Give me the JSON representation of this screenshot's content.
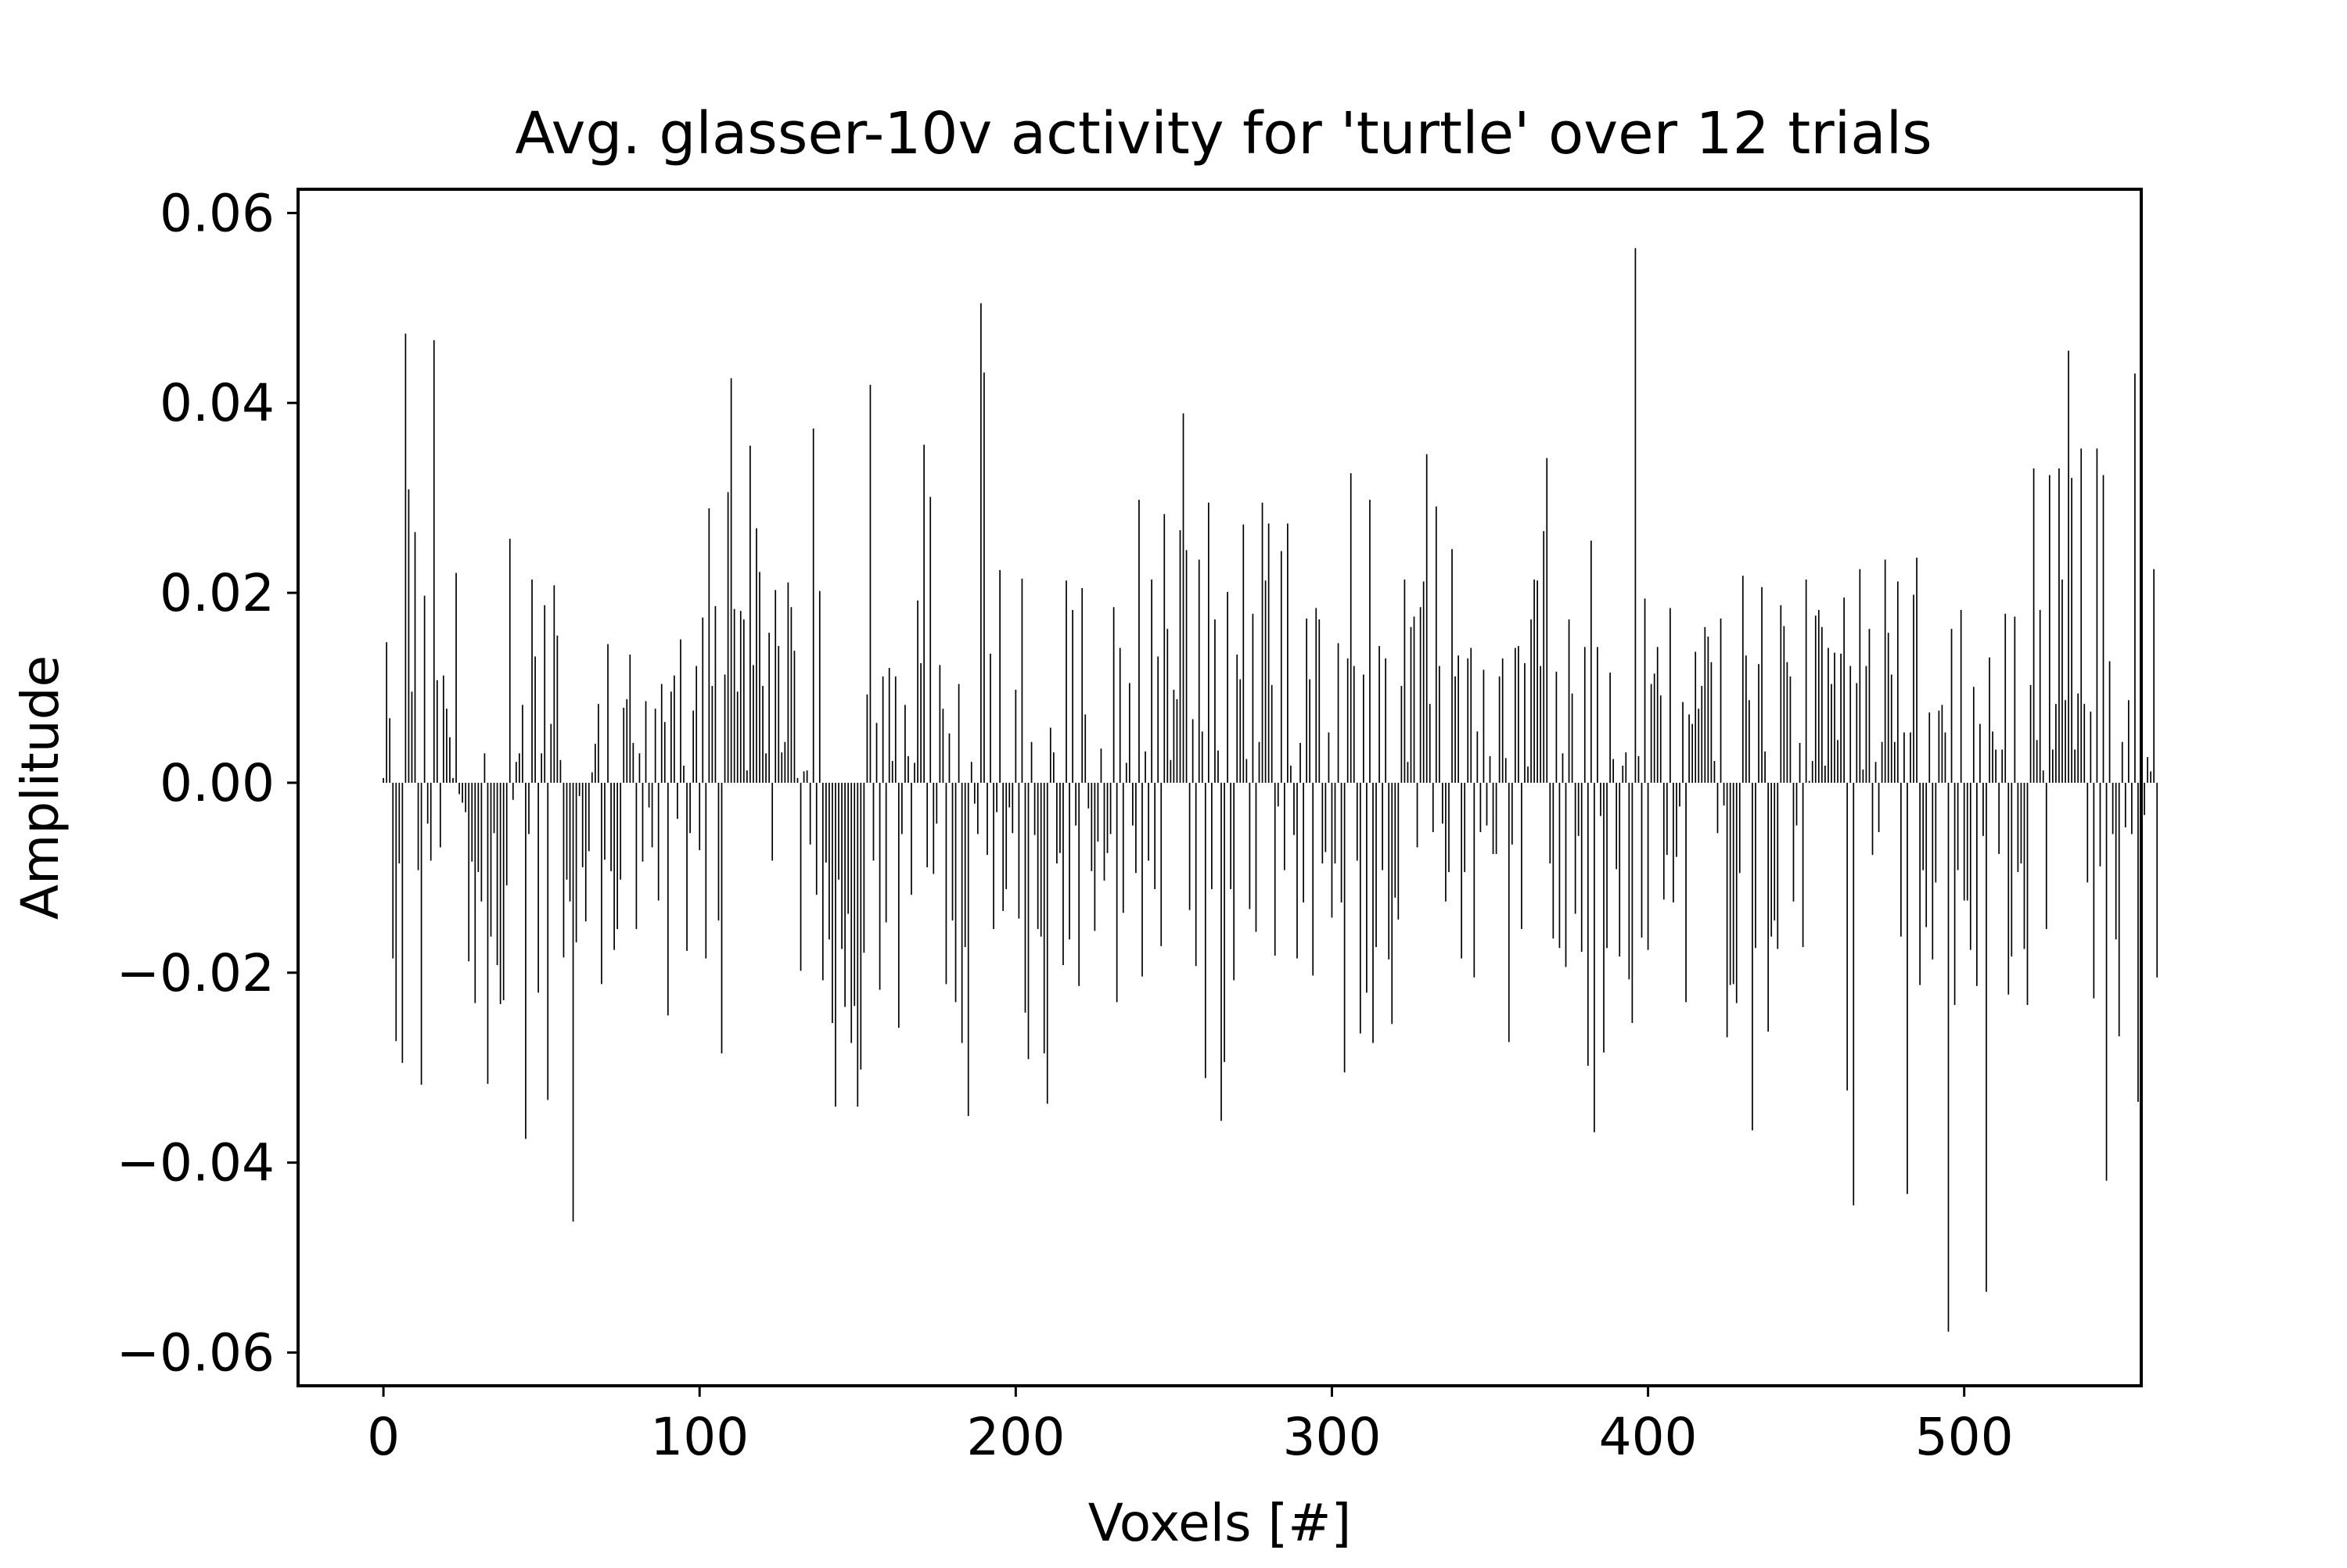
{
  "chart_data": {
    "type": "bar",
    "title": "Avg. glasser-10v activity for 'turtle' over 12 trials",
    "xlabel": "Voxels [#]",
    "ylabel": "Amplitude",
    "xlim": [
      -27,
      556
    ],
    "ylim": [
      -0.0635,
      0.0625
    ],
    "x_ticks": [
      0,
      100,
      200,
      300,
      400,
      500
    ],
    "x_tick_labels": [
      "0",
      "100",
      "200",
      "300",
      "400",
      "500"
    ],
    "y_ticks": [
      0.06,
      0.04,
      0.02,
      0.0,
      -0.02,
      -0.04,
      -0.06
    ],
    "y_tick_labels": [
      "0.06",
      "0.04",
      "0.02",
      "0.00",
      "−0.02",
      "−0.04",
      "−0.06"
    ],
    "grid": false,
    "bar_color": "#000000",
    "series": [
      {
        "values": [
          0.0005,
          0.0148,
          0.0068,
          -0.0185,
          -0.0272,
          -0.0085,
          -0.0295,
          0.0473,
          0.0309,
          0.0096,
          0.0264,
          -0.0092,
          -0.0318,
          0.0197,
          -0.0043,
          -0.0082,
          0.0466,
          0.0108,
          -0.0068,
          0.0113,
          0.0078,
          0.0048,
          0.0005,
          0.0221,
          -0.0012,
          -0.0021,
          -0.0031,
          -0.0188,
          -0.0083,
          -0.0232,
          -0.0094,
          -0.0125,
          0.0031,
          -0.0317,
          -0.0162,
          -0.0053,
          -0.0192,
          -0.0233,
          -0.0229,
          -0.0108,
          0.0257,
          -0.0018,
          0.0022,
          0.0031,
          0.0082,
          -0.0375,
          -0.0054,
          0.0214,
          0.0133,
          -0.0221,
          0.0031,
          0.0187,
          -0.0334,
          0.0062,
          0.0208,
          0.0155,
          0.0024,
          -0.0184,
          -0.0102,
          -0.0125,
          -0.0462,
          -0.0168,
          -0.0014,
          -0.0089,
          -0.0146,
          -0.0072,
          0.0011,
          0.0041,
          0.0083,
          -0.0212,
          -0.0081,
          0.0146,
          -0.0093,
          -0.0176,
          -0.0154,
          -0.0102,
          0.0079,
          0.0088,
          0.0135,
          0.0042,
          -0.0154,
          0.0031,
          -0.0083,
          0.0086,
          -0.0026,
          -0.0068,
          0.0078,
          -0.0124,
          0.0104,
          0.0064,
          -0.0245,
          0.0096,
          0.0113,
          -0.0038,
          0.0151,
          0.0018,
          -0.0177,
          -0.0053,
          0.0076,
          0.0123,
          -0.0071,
          0.0174,
          -0.0185,
          0.0289,
          0.0102,
          0.0186,
          -0.0145,
          -0.0285,
          0.0114,
          0.0306,
          0.0426,
          0.0183,
          0.0096,
          0.0181,
          0.0172,
          0.0013,
          0.0355,
          0.0124,
          0.0268,
          0.0222,
          0.0102,
          0.0031,
          0.0158,
          -0.0082,
          0.0203,
          0.0144,
          0.0032,
          0.0043,
          0.0211,
          0.0185,
          0.0139,
          0.0005,
          -0.0198,
          0.0012,
          0.0013,
          -0.0065,
          0.0373,
          -0.0118,
          0.0202,
          -0.0208,
          -0.0084,
          -0.0165,
          -0.0253,
          -0.0341,
          -0.0102,
          -0.0175,
          -0.0236,
          -0.0138,
          -0.0274,
          -0.0235,
          -0.0341,
          -0.0302,
          -0.0179,
          0.0093,
          0.0419,
          -0.0082,
          0.0063,
          -0.0218,
          0.0112,
          -0.0147,
          0.0121,
          0.0023,
          0.0112,
          -0.0258,
          -0.0054,
          0.0082,
          0.0028,
          -0.0118,
          0.0021,
          0.0192,
          0.0126,
          0.0356,
          -0.0089,
          0.0301,
          -0.0096,
          -0.0043,
          0.0124,
          0.0078,
          -0.0212,
          0.0052,
          -0.0145,
          -0.0231,
          0.0104,
          -0.0274,
          -0.0173,
          -0.0351,
          0.0022,
          -0.0022,
          -0.0054,
          0.0505,
          0.0432,
          -0.0076,
          0.0136,
          -0.0154,
          -0.0031,
          0.0224,
          -0.0135,
          -0.0112,
          -0.0026,
          -0.0053,
          0.0098,
          -0.0143,
          0.0215,
          -0.0242,
          -0.0291,
          0.0043,
          -0.0055,
          -0.0154,
          -0.0162,
          -0.0285,
          -0.0338,
          0.0058,
          0.0032,
          -0.0085,
          -0.0074,
          -0.0192,
          0.0213,
          -0.0165,
          0.0182,
          -0.0045,
          -0.0214,
          0.0205,
          0.0072,
          -0.0027,
          -0.0093,
          -0.0156,
          -0.0062,
          0.0036,
          -0.0103,
          -0.0074,
          -0.0054,
          0.0185,
          -0.0231,
          0.0142,
          -0.0137,
          0.0021,
          0.0105,
          -0.0045,
          -0.0095,
          0.0298,
          -0.0204,
          0.0033,
          -0.0082,
          0.0214,
          -0.0112,
          0.0133,
          -0.0172,
          0.0283,
          0.0162,
          0.0024,
          0.0098,
          0.0088,
          0.0266,
          0.0389,
          0.0245,
          -0.0134,
          0.0067,
          -0.0193,
          0.0235,
          0.0054,
          -0.0311,
          0.0295,
          -0.0112,
          0.0172,
          0.0034,
          -0.0356,
          -0.0294,
          0.0201,
          -0.0112,
          -0.0208,
          0.0135,
          0.0109,
          0.0272,
          0.0025,
          -0.0133,
          0.0178,
          -0.0157,
          0.0043,
          0.0295,
          0.0213,
          0.0273,
          0.0103,
          -0.0182,
          -0.0025,
          0.0244,
          -0.0092,
          0.0273,
          0.0018,
          -0.0055,
          -0.0185,
          0.0042,
          -0.0126,
          0.0173,
          0.0109,
          -0.0203,
          0.0184,
          0.0172,
          -0.0085,
          -0.0073,
          0.0053,
          -0.0142,
          -0.0085,
          0.0147,
          -0.0126,
          -0.0305,
          0.0131,
          0.0326,
          0.0123,
          -0.0082,
          -0.0264,
          0.0114,
          -0.0221,
          0.0298,
          -0.0274,
          -0.0173,
          0.0144,
          -0.0092,
          0.0131,
          -0.0186,
          -0.0254,
          -0.0121,
          -0.0144,
          0.0102,
          0.0214,
          0.0022,
          0.0164,
          0.0175,
          -0.0068,
          0.0185,
          0.0212,
          0.0346,
          0.0083,
          -0.0052,
          0.0291,
          0.0123,
          -0.0043,
          -0.0125,
          -0.0094,
          0.0246,
          0.0112,
          0.0134,
          -0.0185,
          -0.0094,
          0.0131,
          0.0142,
          -0.0205,
          0.0054,
          -0.0052,
          0.0119,
          -0.0045,
          0.0028,
          -0.0075,
          -0.0075,
          0.0112,
          0.0131,
          0.0026,
          -0.0273,
          -0.0065,
          0.0142,
          0.0144,
          -0.0154,
          0.0126,
          0.0017,
          0.0172,
          0.0214,
          0.0213,
          0.0123,
          0.0265,
          0.0342,
          -0.0085,
          -0.0164,
          0.0117,
          -0.0174,
          0.0031,
          -0.0194,
          0.0172,
          0.0094,
          -0.0138,
          -0.0056,
          -0.0178,
          0.0143,
          -0.0298,
          0.0255,
          -0.0368,
          0.0143,
          -0.0035,
          -0.0284,
          -0.0174,
          0.0116,
          0.0025,
          -0.0091,
          -0.0183,
          0.0018,
          0.0032,
          -0.0207,
          -0.0253,
          0.0563,
          0.0028,
          -0.0163,
          0.0194,
          -0.0176,
          0.0104,
          0.0115,
          0.0143,
          0.0092,
          -0.0123,
          -0.0076,
          0.0184,
          -0.0126,
          -0.0078,
          -0.0025,
          0.0085,
          -0.0231,
          0.0072,
          0.0062,
          0.0138,
          0.0078,
          0.0102,
          0.0164,
          0.0154,
          0.0127,
          0.0023,
          -0.0053,
          0.0173,
          -0.0024,
          -0.0268,
          -0.0213,
          -0.0212,
          -0.0232,
          -0.0095,
          0.0218,
          0.0134,
          0.0087,
          -0.0366,
          -0.0174,
          0.0125,
          0.0206,
          0.0033,
          -0.0262,
          -0.0162,
          -0.0145,
          -0.0175,
          0.0187,
          0.0165,
          0.0127,
          0.0112,
          -0.0125,
          -0.0045,
          0.0042,
          -0.0173,
          0.0214,
          0.0002,
          0.0023,
          0.0176,
          0.0182,
          0.0164,
          0.0018,
          0.0142,
          0.0104,
          0.0137,
          0.0045,
          0.0136,
          0.0195,
          -0.0324,
          0.0123,
          -0.0445,
          0.0105,
          0.0225,
          0.0014,
          0.0123,
          0.0162,
          -0.0076,
          0.0022,
          -0.0052,
          0.0043,
          0.0235,
          0.0158,
          0.0114,
          0.0043,
          0.0212,
          -0.0162,
          0.0053,
          -0.0433,
          0.0053,
          0.0198,
          0.0237,
          -0.0213,
          -0.0092,
          -0.0152,
          0.0074,
          -0.0186,
          -0.0105,
          0.0076,
          0.0082,
          0.0053,
          -0.0578,
          0.0162,
          -0.0234,
          -0.0092,
          0.0182,
          -0.0124,
          -0.0124,
          -0.0176,
          0.0101,
          -0.0214,
          0.0062,
          -0.0056,
          -0.0536,
          0.0132,
          0.0054,
          0.0035,
          -0.0075,
          0.0035,
          0.0178,
          -0.0223,
          -0.0183,
          0.0175,
          -0.0094,
          -0.0085,
          -0.0175,
          -0.0234,
          0.0103,
          0.0331,
          0.0045,
          0.0182,
          0.0013,
          -0.0154,
          0.0324,
          0.0035,
          0.0083,
          0.0331,
          0.0214,
          0.0087,
          0.0455,
          0.0321,
          0.0035,
          0.0094,
          0.0352,
          0.0083,
          -0.0105,
          0.0075,
          -0.0227,
          0.0352,
          -0.0088,
          0.0324,
          -0.0419,
          0.0128,
          -0.0054,
          -0.0165,
          -0.0267,
          0.0043,
          -0.0047,
          0.0087,
          -0.0054,
          0.0431,
          -0.0336,
          0.0042,
          -0.0034,
          0.0027,
          0.0012,
          0.0225,
          -0.0205
        ]
      }
    ]
  }
}
